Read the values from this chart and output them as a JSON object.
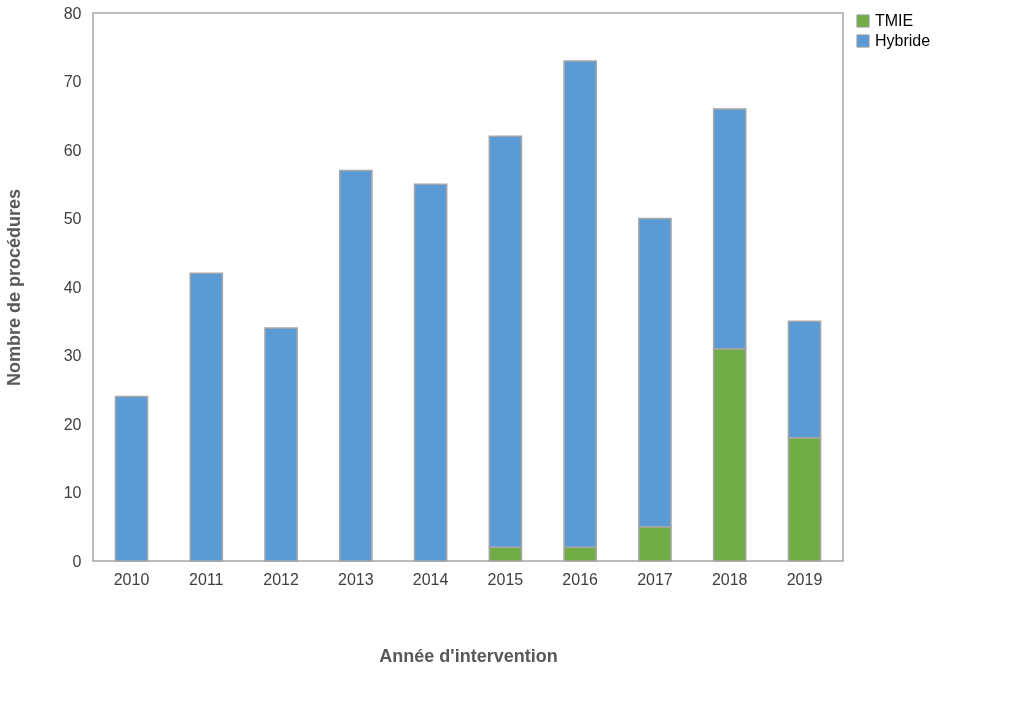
{
  "chart_data": {
    "type": "bar",
    "stacked": true,
    "xlabel": "Année d'intervention",
    "ylabel": "Nombre de procédures",
    "categories": [
      "2010",
      "2011",
      "2012",
      "2013",
      "2014",
      "2015",
      "2016",
      "2017",
      "2018",
      "2019"
    ],
    "series": [
      {
        "name": "TMIE",
        "color": "#70ad47",
        "values": [
          0,
          0,
          0,
          0,
          0,
          2,
          2,
          5,
          31,
          18
        ]
      },
      {
        "name": "Hybride",
        "color": "#5b9bd5",
        "values": [
          24,
          42,
          34,
          57,
          55,
          60,
          71,
          45,
          35,
          17
        ]
      }
    ],
    "ylim": [
      0,
      80
    ],
    "yticks": [
      0,
      10,
      20,
      30,
      40,
      50,
      60,
      70,
      80
    ],
    "grid": false,
    "legend": "top right"
  }
}
